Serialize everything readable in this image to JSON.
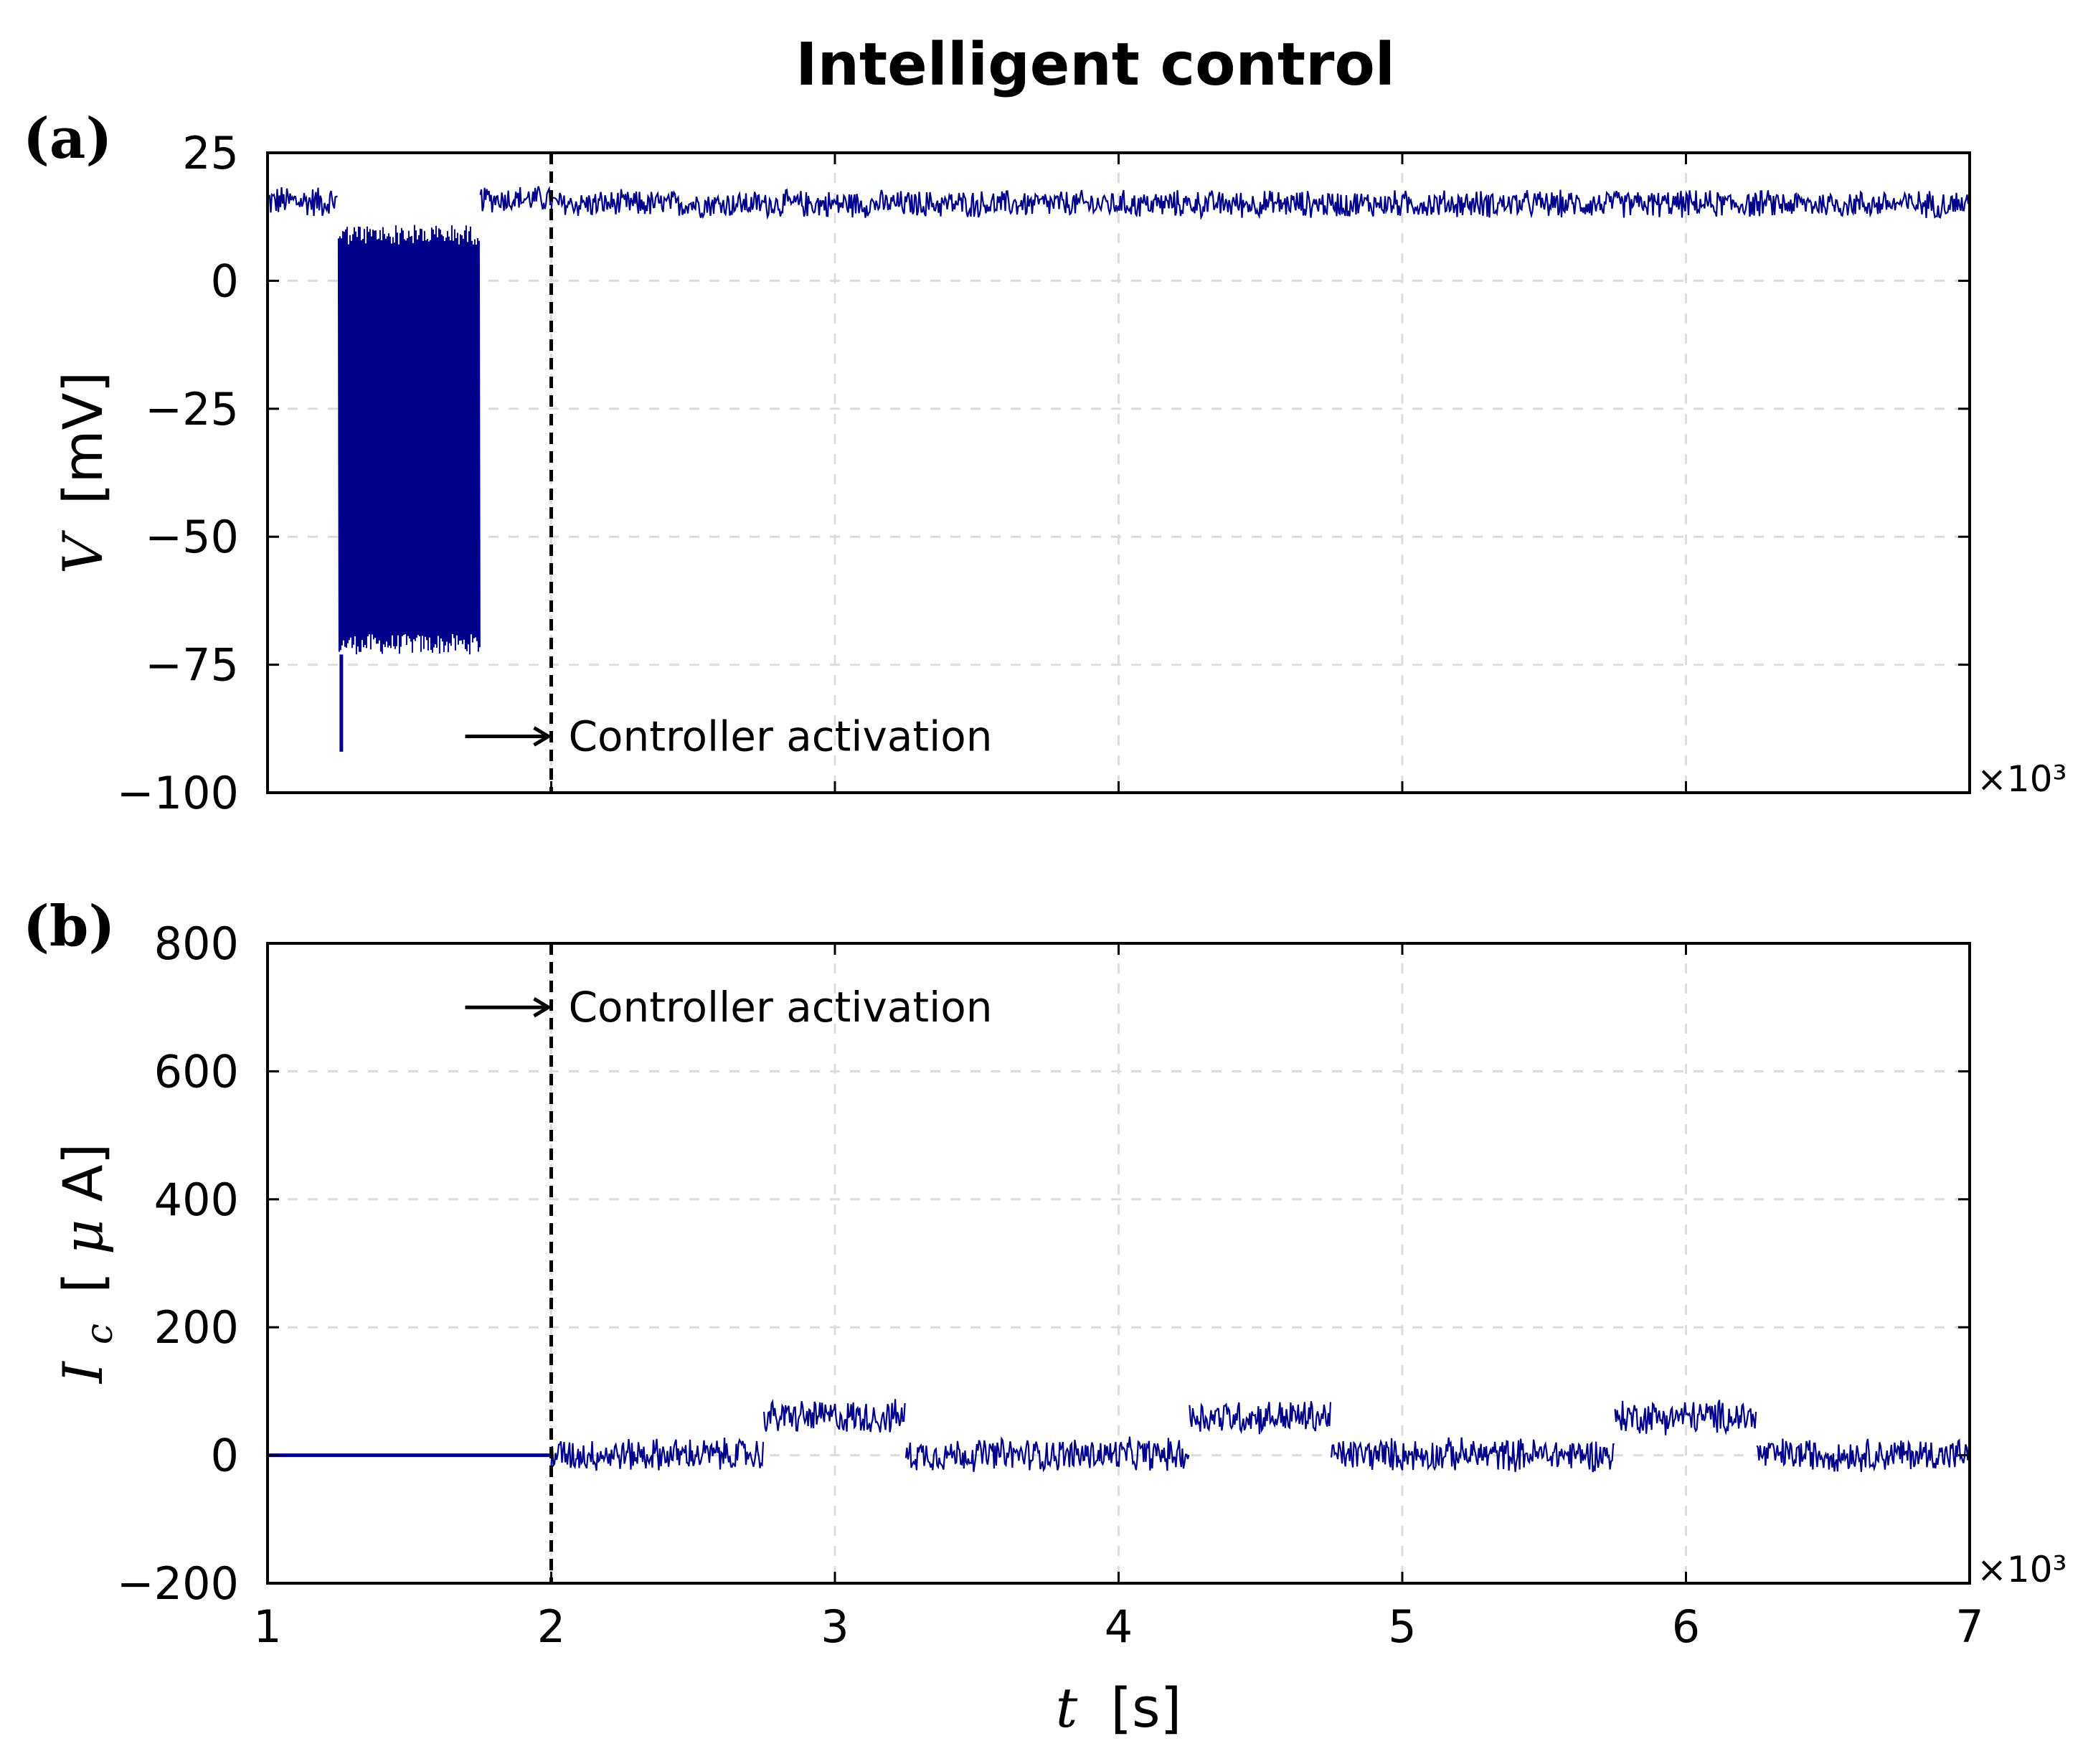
{
  "figure": {
    "title": "Intelligent control",
    "x_multiplier": "×10³"
  },
  "chart_data": [
    {
      "type": "line",
      "panel_label": "(a)",
      "ylabel_var": "V",
      "ylabel_unit": "[mV]",
      "xlabel_var": "",
      "xlabel_unit": "",
      "xlim": [
        1,
        7
      ],
      "ylim": [
        -100,
        25
      ],
      "xticks": [
        1,
        2,
        3,
        4,
        5,
        6,
        7
      ],
      "yticks": [
        25,
        0,
        -25,
        -50,
        -75,
        -100
      ],
      "ytick_labels": [
        "25",
        "0",
        "−25",
        "−50",
        "−75",
        "−100"
      ],
      "xtick_labels": [],
      "x_multiplier": "×10³",
      "grid": true,
      "line_color": "#00008b",
      "series": [
        {
          "description_segments": [
            {
              "x": [
                1.0,
                1.25
              ],
              "center": 15,
              "band": [
                12,
                19
              ]
            },
            {
              "x": [
                1.25,
                1.75
              ],
              "range": [
                -73,
                11
              ],
              "spike_min": -92
            },
            {
              "x": [
                1.75,
                2.0
              ],
              "center": 16,
              "band": [
                13,
                19
              ]
            },
            {
              "x": [
                2.0,
                7.0
              ],
              "center": 15,
              "band": [
                12,
                18
              ]
            }
          ]
        }
      ],
      "annotation": {
        "text": "Controller activation",
        "x": 2.0,
        "y": -89
      },
      "vline_x": 2.0
    },
    {
      "type": "line",
      "panel_label": "(b)",
      "ylabel_var": "I",
      "ylabel_sub": "c",
      "ylabel_unit_open": "[",
      "ylabel_unit_mu": "μ",
      "ylabel_unit_close": "A]",
      "xlabel_var": "t",
      "xlabel_unit": "[s]",
      "xlim": [
        1,
        7
      ],
      "ylim": [
        -200,
        800
      ],
      "xticks": [
        1,
        2,
        3,
        4,
        5,
        6,
        7
      ],
      "xtick_labels": [
        "1",
        "2",
        "3",
        "4",
        "5",
        "6",
        "7"
      ],
      "yticks": [
        800,
        600,
        400,
        200,
        0,
        -200
      ],
      "ytick_labels": [
        "800",
        "600",
        "400",
        "200",
        "0",
        "−200"
      ],
      "x_multiplier": "×10³",
      "grid": true,
      "line_color": "#00008b",
      "series": [
        {
          "description_segments": [
            {
              "x": [
                1.0,
                2.0
              ],
              "center": 0,
              "band": [
                0,
                0
              ]
            },
            {
              "x": [
                2.0,
                2.75
              ],
              "center": 0,
              "band": [
                -28,
                30
              ]
            },
            {
              "x": [
                2.75,
                3.25
              ],
              "center": 55,
              "band": [
                30,
                90
              ]
            },
            {
              "x": [
                3.25,
                4.25
              ],
              "center": 0,
              "band": [
                -28,
                30
              ]
            },
            {
              "x": [
                4.25,
                4.75
              ],
              "center": 55,
              "band": [
                30,
                90
              ]
            },
            {
              "x": [
                4.75,
                5.75
              ],
              "center": 0,
              "band": [
                -28,
                30
              ]
            },
            {
              "x": [
                5.75,
                6.25
              ],
              "center": 55,
              "band": [
                30,
                90
              ]
            },
            {
              "x": [
                6.25,
                7.0
              ],
              "center": 0,
              "band": [
                -28,
                30
              ]
            }
          ]
        }
      ],
      "annotation": {
        "text": "Controller activation",
        "x": 2.0,
        "y": 700
      },
      "vline_x": 2.0
    }
  ]
}
